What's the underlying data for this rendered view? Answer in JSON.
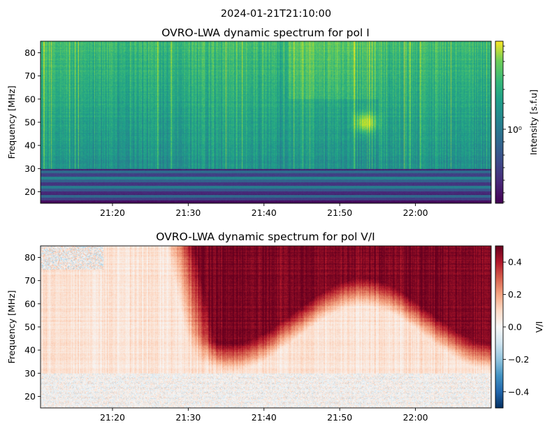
{
  "suptitle": "2024-01-21T21:10:00",
  "chart_data": [
    {
      "type": "heatmap",
      "title": "OVRO-LWA dynamic spectrum for pol I",
      "xlabel": "",
      "ylabel": "Frequency [MHz]",
      "x_ticks": [
        "21:20",
        "21:30",
        "21:40",
        "21:50",
        "22:00"
      ],
      "x_tick_minutes": [
        20,
        30,
        40,
        50,
        60
      ],
      "xlim_minutes": [
        10.5,
        70
      ],
      "y_ticks": [
        20,
        30,
        40,
        50,
        60,
        70,
        80
      ],
      "ylim": [
        15,
        85
      ],
      "colorbar": {
        "label": "Intensity [s.f.u]",
        "scale": "log",
        "colormap": "viridis",
        "tick_label": "10⁰",
        "tick_value": 1
      },
      "features": [
        {
          "name": "rfi-bands",
          "freq_range_mhz": [
            15,
            30
          ]
        },
        {
          "name": "bright-patch",
          "time_minute": 53,
          "freq_mhz": 50
        }
      ]
    },
    {
      "type": "heatmap",
      "title": "OVRO-LWA dynamic spectrum for pol V/I",
      "xlabel": "",
      "ylabel": "Frequency [MHz]",
      "x_ticks": [
        "21:20",
        "21:30",
        "21:40",
        "21:50",
        "22:00"
      ],
      "x_tick_minutes": [
        20,
        30,
        40,
        50,
        60
      ],
      "xlim_minutes": [
        10.5,
        70
      ],
      "y_ticks": [
        20,
        30,
        40,
        50,
        60,
        70,
        80
      ],
      "ylim": [
        15,
        85
      ],
      "colorbar": {
        "label": "V/I",
        "scale": "linear",
        "colormap": "RdBu_r",
        "range": [
          -0.5,
          0.5
        ],
        "ticks": [
          0.4,
          0.2,
          0.0,
          -0.2,
          -0.4
        ],
        "tick_labels": [
          "0.4",
          "0.2",
          "0.0",
          "−0.2",
          "−0.4"
        ]
      },
      "features": [
        {
          "name": "strong-positive-region",
          "time_range_minutes": [
            28,
            70
          ],
          "freq_range_mhz": [
            45,
            85
          ]
        }
      ]
    }
  ]
}
